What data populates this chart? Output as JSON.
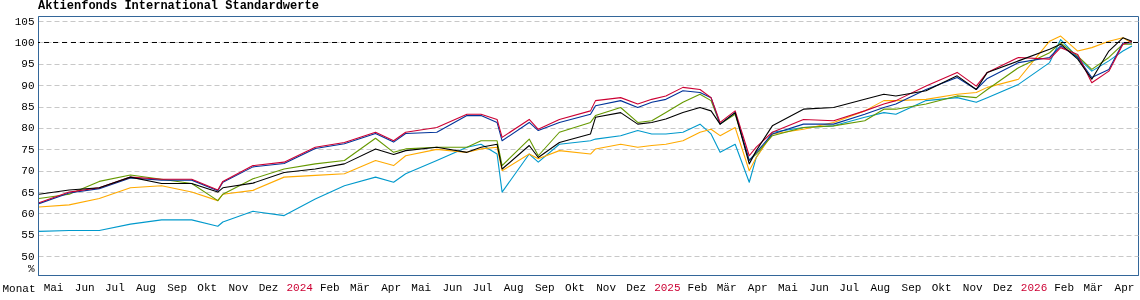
{
  "chart_data": {
    "type": "line",
    "title": "Aktienfonds International Standardwerte",
    "xlabel": "Monat",
    "ylabel": "%",
    "x": [
      "2023-05-02",
      "2023-06-01",
      "2023-07-01",
      "2023-08-01",
      "2023-09-01",
      "2023-10-01",
      "2023-10-27",
      "2023-11-01",
      "2023-12-01",
      "2024-01-01",
      "2024-02-01",
      "2024-03-01",
      "2024-04-01",
      "2024-04-19",
      "2024-05-01",
      "2024-06-01",
      "2024-07-01",
      "2024-07-15",
      "2024-07-31",
      "2024-08-05",
      "2024-09-01",
      "2024-09-10",
      "2024-10-01",
      "2024-11-01",
      "2024-11-06",
      "2024-12-01",
      "2024-12-18",
      "2025-01-01",
      "2025-01-15",
      "2025-02-01",
      "2025-02-18",
      "2025-03-01",
      "2025-03-10",
      "2025-03-25",
      "2025-04-08",
      "2025-04-15",
      "2025-05-01",
      "2025-06-01",
      "2025-07-01",
      "2025-08-01",
      "2025-08-20",
      "2025-09-01",
      "2025-10-01",
      "2025-11-01",
      "2025-11-20",
      "2025-12-01",
      "2026-01-01",
      "2026-02-01",
      "2026-02-12",
      "2026-03-01",
      "2026-03-15",
      "2026-04-01",
      "2026-04-15",
      "2026-04-24"
    ],
    "series": [
      {
        "color": "#0099cc",
        "values": [
          55.8,
          56,
          56,
          57.5,
          58.5,
          58.5,
          57,
          58,
          60.5,
          59.5,
          63.4,
          66.5,
          68.5,
          67.3,
          69.3,
          72.4,
          75.5,
          76.2,
          73.9,
          65,
          73.9,
          72,
          76.2,
          77,
          77.4,
          78.2,
          79.4,
          78.6,
          78.6,
          79,
          80.9,
          78.6,
          74.3,
          76.2,
          67.3,
          73.1,
          79,
          80.1,
          80.5,
          82.5,
          83.6,
          83.2,
          86.4,
          87.1,
          86,
          87.1,
          90.2,
          95.3,
          100.7,
          96.5,
          93.3,
          95.7,
          98,
          99.2
        ]
      },
      {
        "color": "#ffaa00",
        "values": [
          61.5,
          62,
          63.5,
          66,
          66.5,
          65,
          63,
          64.5,
          65.4,
          68.5,
          68.9,
          69.3,
          72.4,
          71.2,
          73.5,
          75,
          74.3,
          75.1,
          75.5,
          70,
          73.9,
          72.8,
          74.7,
          73.9,
          75.1,
          76.2,
          75.5,
          75.9,
          76.2,
          77,
          79,
          79.7,
          78.2,
          80.1,
          70,
          73.1,
          78.6,
          79.7,
          81.3,
          84,
          86.4,
          86.4,
          86.7,
          87.9,
          88.3,
          89.5,
          91.4,
          100.3,
          101.5,
          98,
          98.8,
          100.3,
          101.1,
          99.9
        ]
      },
      {
        "color": "#669900",
        "values": [
          63.5,
          64.5,
          67.5,
          69,
          68,
          67,
          63,
          64.5,
          68.1,
          70.4,
          71.6,
          72.4,
          77.6,
          74.3,
          75.1,
          75.5,
          75.5,
          77,
          77,
          71.2,
          77.4,
          73.5,
          79,
          81.3,
          82.9,
          84.8,
          81.3,
          81.7,
          83.6,
          86,
          87.9,
          86.4,
          80.9,
          83.2,
          72.4,
          73.9,
          78.2,
          80.1,
          80.5,
          81.7,
          84.4,
          84.4,
          85.6,
          87.5,
          87.1,
          89,
          94.1,
          97.6,
          99.9,
          96.8,
          93.7,
          96.5,
          99.6,
          99.6
        ]
      },
      {
        "color": "#003399",
        "values": [
          62.3,
          64.8,
          65.8,
          68.3,
          67.8,
          67.8,
          65.3,
          67.3,
          70.9,
          71.7,
          75.2,
          76.3,
          78.7,
          76.7,
          78.7,
          79,
          82.9,
          82.9,
          81.3,
          77,
          81.3,
          79.4,
          81.3,
          83.2,
          85.2,
          86.4,
          84.8,
          86,
          86.7,
          88.7,
          88.3,
          87.1,
          80.9,
          83.6,
          72.4,
          74.3,
          78.6,
          80.9,
          80.9,
          83.2,
          84.8,
          85.6,
          89,
          91.8,
          89,
          91.6,
          95.3,
          96.5,
          99.2,
          96.5,
          91.8,
          93.7,
          99.9,
          99.9
        ]
      },
      {
        "color": "#cc0033",
        "values": [
          62.5,
          65,
          66,
          68.5,
          68,
          68,
          65.5,
          67.5,
          71.2,
          72,
          75.5,
          76.6,
          79,
          77,
          79,
          80.1,
          83.2,
          83.2,
          82,
          77.8,
          82,
          79.7,
          82,
          84,
          86.4,
          87.1,
          85.6,
          86.7,
          87.5,
          89.5,
          89,
          87.1,
          81.3,
          84,
          73.5,
          75.5,
          79,
          82,
          81.7,
          84,
          85.6,
          86.4,
          89.8,
          93,
          89.8,
          93,
          96.5,
          96.1,
          98.8,
          97.2,
          90.6,
          93.3,
          99.6,
          100.3
        ]
      },
      {
        "color": "#000000",
        "values": [
          64.5,
          65.5,
          66,
          68.5,
          67,
          67,
          65,
          66,
          67.1,
          69.6,
          70.4,
          71.6,
          75.1,
          73.8,
          74.7,
          75.5,
          74.3,
          75.5,
          76.2,
          70.4,
          75.9,
          73.1,
          76.6,
          78.6,
          82.5,
          83.6,
          80.9,
          81.3,
          82.1,
          83.6,
          84.8,
          84,
          80.9,
          83.6,
          71.6,
          74.7,
          80.5,
          84.4,
          84.8,
          86.7,
          87.9,
          87.5,
          88.7,
          92.2,
          89,
          93,
          95.7,
          98.4,
          99.6,
          96.1,
          91.4,
          98,
          101.1,
          100.3
        ]
      }
    ],
    "xlim": [
      "2023-05-01",
      "2026-04-30"
    ],
    "xticks": [
      {
        "value": "2023-05-16",
        "label": "Mai"
      },
      {
        "value": "2023-06-16",
        "label": "Jun"
      },
      {
        "value": "2023-07-16",
        "label": "Jul"
      },
      {
        "value": "2023-08-16",
        "label": "Aug"
      },
      {
        "value": "2023-09-16",
        "label": "Sep"
      },
      {
        "value": "2023-10-16",
        "label": "Okt"
      },
      {
        "value": "2023-11-16",
        "label": "Nov"
      },
      {
        "value": "2023-12-16",
        "label": "Dez"
      },
      {
        "value": "2024-01-16",
        "label": "2024"
      },
      {
        "value": "2024-02-15",
        "label": "Feb"
      },
      {
        "value": "2024-03-16",
        "label": "Mär"
      },
      {
        "value": "2024-04-16",
        "label": "Apr"
      },
      {
        "value": "2024-05-16",
        "label": "Mai"
      },
      {
        "value": "2024-06-16",
        "label": "Jun"
      },
      {
        "value": "2024-07-16",
        "label": "Jul"
      },
      {
        "value": "2024-08-16",
        "label": "Aug"
      },
      {
        "value": "2024-09-16",
        "label": "Sep"
      },
      {
        "value": "2024-10-16",
        "label": "Okt"
      },
      {
        "value": "2024-11-16",
        "label": "Nov"
      },
      {
        "value": "2024-12-16",
        "label": "Dez"
      },
      {
        "value": "2025-01-16",
        "label": "2025"
      },
      {
        "value": "2025-02-15",
        "label": "Feb"
      },
      {
        "value": "2025-03-16",
        "label": "Mär"
      },
      {
        "value": "2025-04-16",
        "label": "Apr"
      },
      {
        "value": "2025-05-16",
        "label": "Mai"
      },
      {
        "value": "2025-06-16",
        "label": "Jun"
      },
      {
        "value": "2025-07-16",
        "label": "Jul"
      },
      {
        "value": "2025-08-16",
        "label": "Aug"
      },
      {
        "value": "2025-09-16",
        "label": "Sep"
      },
      {
        "value": "2025-10-16",
        "label": "Okt"
      },
      {
        "value": "2025-11-16",
        "label": "Nov"
      },
      {
        "value": "2025-12-16",
        "label": "Dez"
      },
      {
        "value": "2026-01-16",
        "label": "2026"
      },
      {
        "value": "2026-02-15",
        "label": "Feb"
      },
      {
        "value": "2026-03-16",
        "label": "Mär"
      },
      {
        "value": "2026-04-16",
        "label": "Apr"
      }
    ],
    "ylim": [
      45.6,
      106.2
    ],
    "yticks": [
      50,
      55,
      60,
      65,
      70,
      75,
      80,
      85,
      90,
      95,
      100,
      105
    ],
    "ref_lines": [
      {
        "axis": "y",
        "value": 100,
        "color": "#000000",
        "line_style": "dashed"
      }
    ],
    "grid": "y",
    "legend": false,
    "marker": "none",
    "line_style": "solid"
  }
}
